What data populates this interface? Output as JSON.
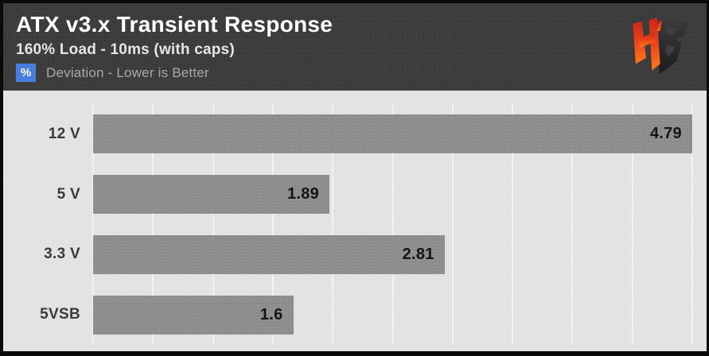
{
  "header": {
    "title": "ATX v3.x Transient Response",
    "subtitle": "160% Load - 10ms (with caps)",
    "badge": "%",
    "tagline": "Deviation - Lower is Better",
    "badge_color": "#4a7de0"
  },
  "logo": {
    "name": "hardware-busters-logo",
    "colors": {
      "h_top": "#c9271a",
      "h_bottom": "#ff7a1e",
      "b_top": "#3c3c3c",
      "b_bottom": "#1c1c1c"
    }
  },
  "chart_data": {
    "type": "bar",
    "orientation": "horizontal",
    "title": "ATX v3.x Transient Response",
    "subtitle": "160% Load - 10ms (with caps)",
    "note": "Deviation - Lower is Better",
    "unit": "%",
    "categories": [
      "12 V",
      "5 V",
      "3.3 V",
      "5VSB"
    ],
    "values": [
      4.79,
      1.89,
      2.81,
      1.6
    ],
    "value_labels": [
      "4.79",
      "1.89",
      "2.81",
      "1.6"
    ],
    "xlim": [
      0,
      4.79
    ],
    "gridline_count": 11,
    "grid": true,
    "legend": false,
    "bar_color": "#909090",
    "plot_background": "#e4e4e4",
    "gridline_color": "#f2f2f2"
  }
}
